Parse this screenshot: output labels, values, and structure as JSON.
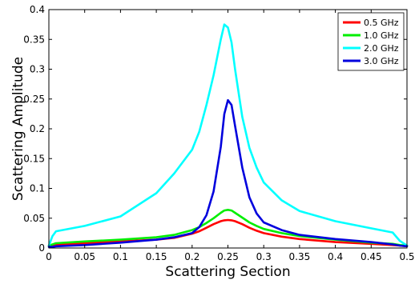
{
  "chart_data": {
    "type": "line",
    "title": "",
    "xlabel": "Scattering Section",
    "ylabel": "Scattering Amplitude",
    "xlim": [
      0,
      0.5
    ],
    "ylim": [
      0,
      0.4
    ],
    "xticks": [
      "0",
      "0.05",
      "0.1",
      "0.15",
      "0.2",
      "0.25",
      "0.3",
      "0.35",
      "0.4",
      "0.45",
      "0.5"
    ],
    "yticks": [
      "0",
      "0.05",
      "0.1",
      "0.15",
      "0.2",
      "0.25",
      "0.3",
      "0.35",
      "0.4"
    ],
    "grid": false,
    "legend_position": "top-right",
    "x": [
      0.0,
      0.005,
      0.01,
      0.05,
      0.1,
      0.15,
      0.175,
      0.2,
      0.21,
      0.22,
      0.23,
      0.24,
      0.245,
      0.25,
      0.255,
      0.26,
      0.27,
      0.28,
      0.29,
      0.3,
      0.325,
      0.35,
      0.4,
      0.45,
      0.48,
      0.49,
      0.5
    ],
    "series": [
      {
        "name": "0.5 GHz",
        "color": "#ff0000",
        "values": [
          0.003,
          0.004,
          0.005,
          0.008,
          0.011,
          0.014,
          0.017,
          0.024,
          0.028,
          0.034,
          0.04,
          0.045,
          0.0465,
          0.047,
          0.0465,
          0.045,
          0.04,
          0.034,
          0.029,
          0.025,
          0.019,
          0.015,
          0.01,
          0.007,
          0.005,
          0.004,
          0.003
        ]
      },
      {
        "name": "1.0 GHz",
        "color": "#00ee00",
        "values": [
          0.004,
          0.006,
          0.008,
          0.011,
          0.014,
          0.018,
          0.022,
          0.03,
          0.035,
          0.042,
          0.05,
          0.059,
          0.063,
          0.064,
          0.063,
          0.059,
          0.051,
          0.043,
          0.037,
          0.032,
          0.025,
          0.02,
          0.014,
          0.009,
          0.007,
          0.005,
          0.004
        ]
      },
      {
        "name": "2.0 GHz",
        "color": "#00ffff",
        "values": [
          0.004,
          0.02,
          0.028,
          0.037,
          0.053,
          0.092,
          0.125,
          0.165,
          0.195,
          0.24,
          0.29,
          0.35,
          0.375,
          0.37,
          0.345,
          0.3,
          0.22,
          0.168,
          0.135,
          0.11,
          0.08,
          0.062,
          0.045,
          0.033,
          0.026,
          0.012,
          0.004
        ]
      },
      {
        "name": "3.0 GHz",
        "color": "#0000dd",
        "values": [
          0.002,
          0.002,
          0.003,
          0.005,
          0.009,
          0.014,
          0.018,
          0.025,
          0.035,
          0.055,
          0.095,
          0.17,
          0.225,
          0.248,
          0.24,
          0.205,
          0.135,
          0.085,
          0.058,
          0.043,
          0.03,
          0.022,
          0.015,
          0.01,
          0.006,
          0.004,
          0.003
        ]
      }
    ]
  }
}
